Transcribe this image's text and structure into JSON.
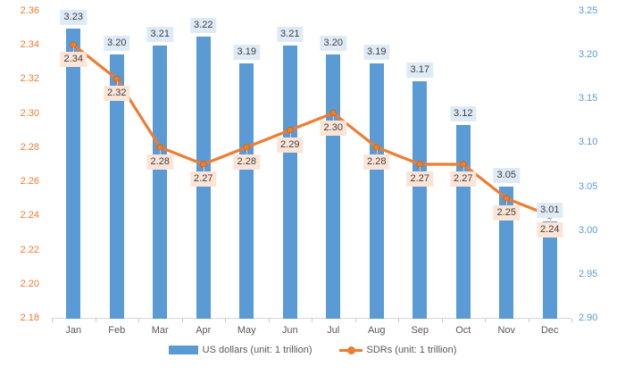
{
  "chart_data": {
    "type": "bar",
    "subtype": "combo-bar-line-dual-axis",
    "title": "",
    "categories": [
      "Jan",
      "Feb",
      "Mar",
      "Apr",
      "May",
      "Jun",
      "Jul",
      "Aug",
      "Sep",
      "Oct",
      "Nov",
      "Dec"
    ],
    "series": [
      {
        "name": "US dollars (unit: 1 trillion)",
        "type": "bar",
        "axis": "right",
        "values": [
          3.23,
          3.2,
          3.21,
          3.22,
          3.19,
          3.21,
          3.2,
          3.19,
          3.17,
          3.12,
          3.05,
          3.01
        ]
      },
      {
        "name": "SDRs (unit: 1 trillion)",
        "type": "line",
        "axis": "left",
        "values": [
          2.34,
          2.32,
          2.28,
          2.27,
          2.28,
          2.29,
          2.3,
          2.28,
          2.27,
          2.27,
          2.25,
          2.24
        ]
      }
    ],
    "left_axis": {
      "min": 2.18,
      "max": 2.36,
      "step": 0.02,
      "ticks": [
        "2.36",
        "2.34",
        "2.32",
        "2.30",
        "2.28",
        "2.26",
        "2.24",
        "2.22",
        "2.20",
        "2.18"
      ]
    },
    "right_axis": {
      "min": 2.9,
      "max": 3.25,
      "step": 0.05,
      "ticks": [
        "3.25",
        "3.20",
        "3.15",
        "3.10",
        "3.05",
        "3.00",
        "2.95",
        "2.90"
      ]
    },
    "grid": false,
    "legend_position": "bottom",
    "colors": {
      "bar": "#5B9BD5",
      "line": "#ED7D31",
      "marker_stroke": "#C96A20",
      "bar_label_bg": "#DEEBF7",
      "line_label_bg": "#FCE4D6",
      "label_text": "#3F3F3F",
      "left_axis_text": "#ED7D31",
      "right_axis_text": "#5B9BD5",
      "month_text": "#595959",
      "axis_line": "#D6D6D6",
      "background": "#FFFFFF"
    }
  }
}
